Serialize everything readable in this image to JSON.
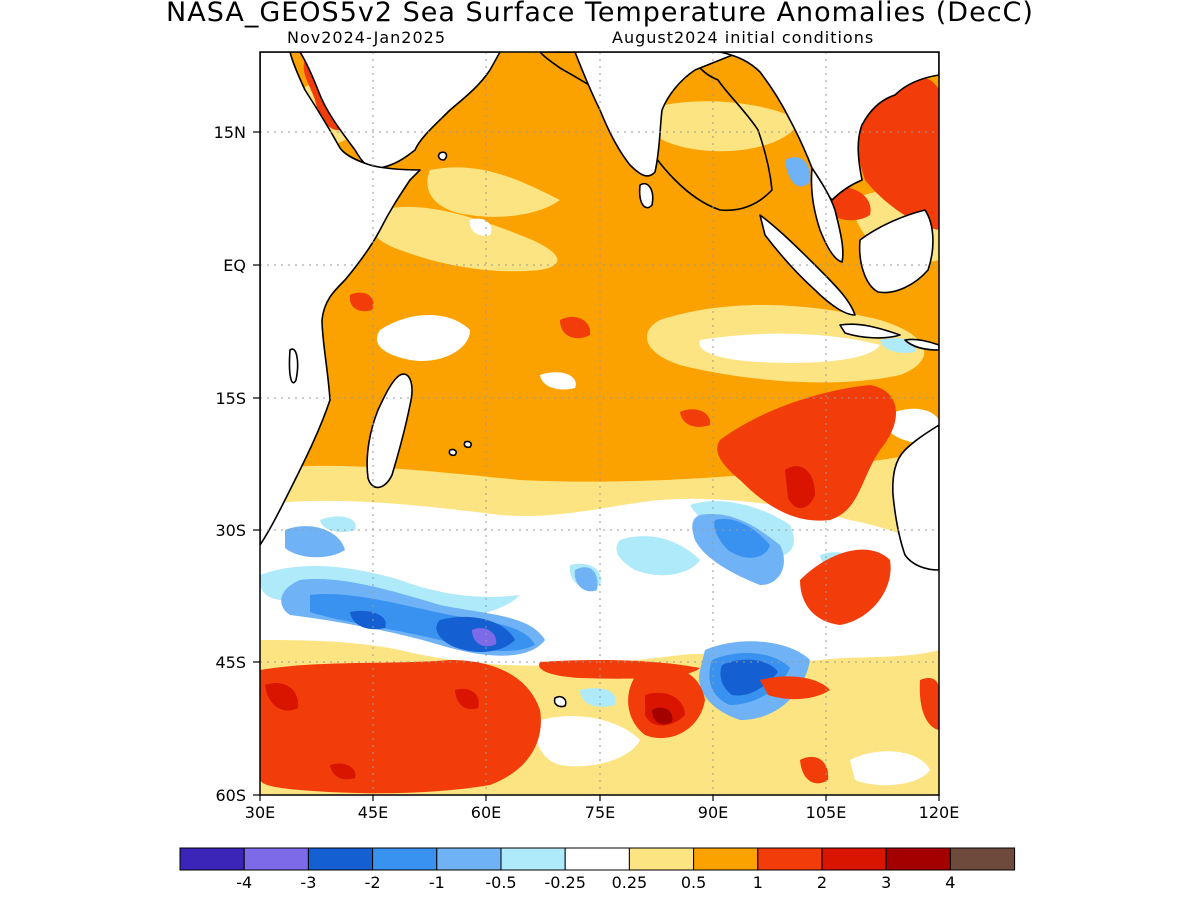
{
  "header": {
    "title": "NASA_GEOS5v2 Sea Surface Temperature Anomalies (DecC)",
    "period": "Nov2024-Jan2025",
    "initial_conditions": "August2024 initial conditions"
  },
  "map": {
    "lat_labels": [
      "15N",
      "EQ",
      "15S",
      "30S",
      "45S",
      "60S"
    ],
    "lon_labels": [
      "30E",
      "45E",
      "60E",
      "75E",
      "90E",
      "105E",
      "120E"
    ],
    "grid_lines": "dotted"
  },
  "colorbar": {
    "labels": [
      "-4",
      "-3",
      "-2",
      "-1",
      "-0.5",
      "-0.25",
      "0.25",
      "0.5",
      "1",
      "2",
      "3",
      "4"
    ],
    "colors": [
      "#3a25b8",
      "#7d6ae8",
      "#1460d2",
      "#3a92f0",
      "#6fb2f5",
      "#aeeafa",
      "#ffffff",
      "#fde483",
      "#fba200",
      "#f23d0a",
      "#d91500",
      "#a50000",
      "#6e4a3d"
    ]
  },
  "chart_data": {
    "type": "heatmap",
    "title": "NASA_GEOS5v2 Sea Surface Temperature Anomalies (DecC)",
    "subtitle_left": "Nov2024-Jan2025",
    "subtitle_right": "August2024 initial conditions",
    "x_range": [
      "30E",
      "120E"
    ],
    "y_range": [
      "60S",
      "21N"
    ],
    "x_ticks": [
      "30E",
      "45E",
      "60E",
      "75E",
      "90E",
      "105E",
      "120E"
    ],
    "y_ticks": [
      "15N",
      "EQ",
      "15S",
      "30S",
      "45S",
      "60S"
    ],
    "contour_levels": [
      -4,
      -3,
      -2,
      -1,
      -0.5,
      -0.25,
      0.25,
      0.5,
      1,
      2,
      3,
      4
    ],
    "grid": true
  }
}
